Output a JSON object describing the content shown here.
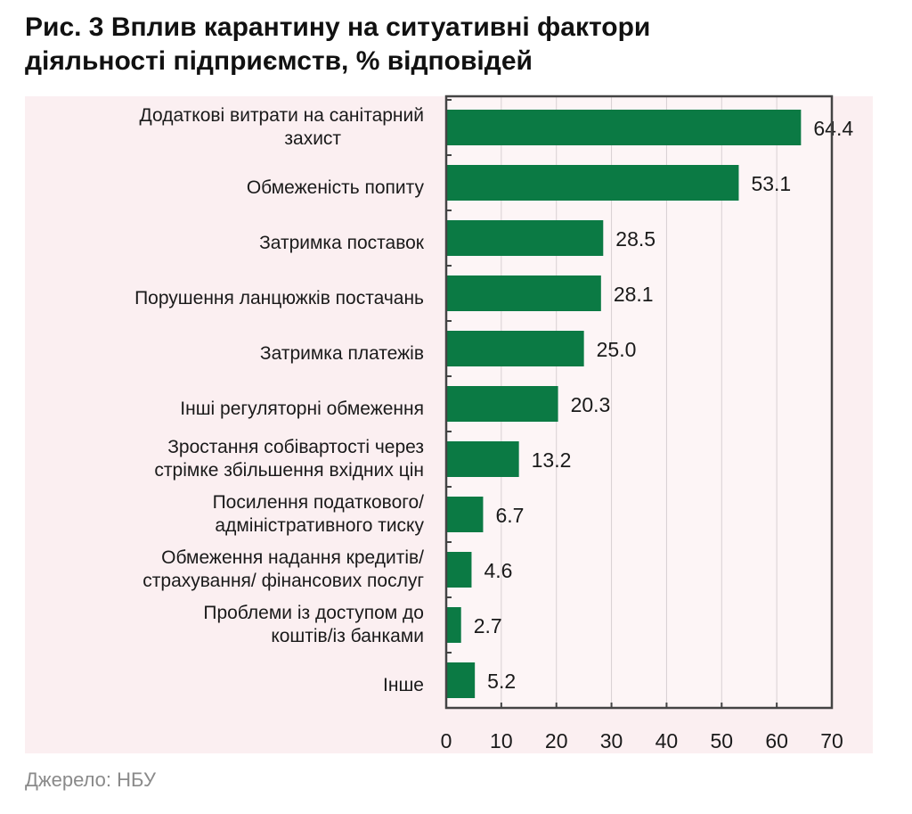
{
  "title_line1": "Рис. 3 Вплив карантину на ситуативні фактори",
  "title_line2": "діяльності підприємств, % відповідей",
  "source": "Джерело: НБУ",
  "colors": {
    "bar": "#0b7a44",
    "background": "#fbeff1",
    "axis": "#444444",
    "grid": "#d8d0d2"
  },
  "chart_data": {
    "type": "bar",
    "orientation": "horizontal",
    "title": "Рис. 3 Вплив карантину на ситуативні фактори діяльності підприємств, % відповідей",
    "categories": [
      [
        "Додаткові витрати на санітарний",
        "захист"
      ],
      [
        "Обмеженість попиту"
      ],
      [
        "Затримка поставок"
      ],
      [
        "Порушення ланцюжків постачань"
      ],
      [
        "Затримка платежів"
      ],
      [
        "Інші регуляторні обмеження"
      ],
      [
        "Зростання собівартості через",
        "стрімке збільшення вхідних цін"
      ],
      [
        "Посилення податкового/",
        "адміністративного тиску"
      ],
      [
        "Обмеження надання кредитів/",
        "страхування/ фінансових послуг"
      ],
      [
        "Проблеми із доступом до",
        "коштів/із банками"
      ],
      [
        "Інше"
      ]
    ],
    "values": [
      64.4,
      53.1,
      28.5,
      28.1,
      25.0,
      20.3,
      13.2,
      6.7,
      4.6,
      2.7,
      5.2
    ],
    "value_labels": [
      "64.4",
      "53.1",
      "28.5",
      "28.1",
      "25.0",
      "20.3",
      "13.2",
      "6.7",
      "4.6",
      "2.7",
      "5.2"
    ],
    "xlim": [
      0,
      70
    ],
    "xticks": [
      "0",
      "10",
      "20",
      "30",
      "40",
      "50",
      "60",
      "70"
    ],
    "grid": true,
    "legend": "none"
  }
}
